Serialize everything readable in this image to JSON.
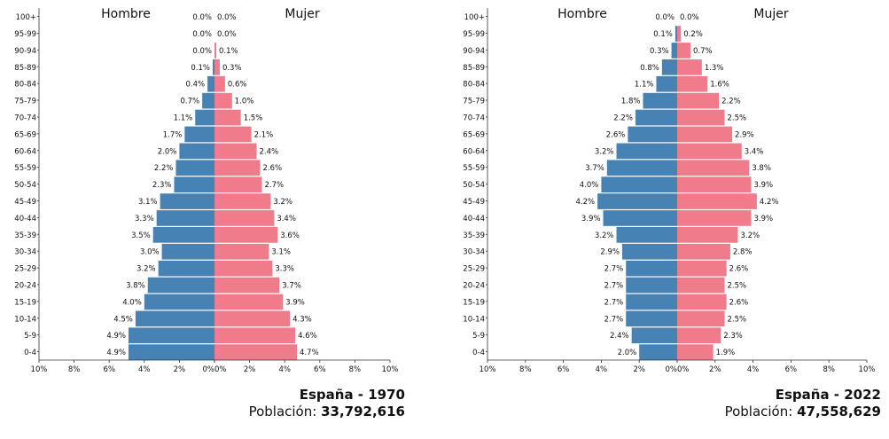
{
  "chart_data": [
    {
      "type": "bar",
      "orientation": "horizontal",
      "title": "España - 1970",
      "population_label": "Población:",
      "population": "33,792,616",
      "left_label": "Hombre",
      "right_label": "Mujer",
      "xlim": [
        -10,
        10
      ],
      "ticks": [
        "10%",
        "8%",
        "6%",
        "4%",
        "2%",
        "0%",
        "0%",
        "2%",
        "4%",
        "6%",
        "8%",
        "10%"
      ],
      "categories": [
        "0-4",
        "5-9",
        "10-14",
        "15-19",
        "20-24",
        "25-29",
        "30-34",
        "35-39",
        "40-44",
        "45-49",
        "50-54",
        "55-59",
        "60-64",
        "65-69",
        "70-74",
        "75-79",
        "80-84",
        "85-89",
        "90-94",
        "95-99",
        "100+"
      ],
      "series": [
        {
          "name": "Hombre",
          "values": [
            4.9,
            4.9,
            4.5,
            4.0,
            3.8,
            3.2,
            3.0,
            3.5,
            3.3,
            3.1,
            2.3,
            2.2,
            2.0,
            1.7,
            1.1,
            0.7,
            0.4,
            0.1,
            0.0,
            0.0,
            0.0
          ]
        },
        {
          "name": "Mujer",
          "values": [
            4.7,
            4.6,
            4.3,
            3.9,
            3.7,
            3.3,
            3.1,
            3.6,
            3.4,
            3.2,
            2.7,
            2.6,
            2.4,
            2.1,
            1.5,
            1.0,
            0.6,
            0.3,
            0.1,
            0.0,
            0.0
          ]
        }
      ]
    },
    {
      "type": "bar",
      "orientation": "horizontal",
      "title": "España - 2022",
      "population_label": "Población:",
      "population": "47,558,629",
      "left_label": "Hombre",
      "right_label": "Mujer",
      "xlim": [
        -10,
        10
      ],
      "ticks": [
        "10%",
        "8%",
        "6%",
        "4%",
        "2%",
        "0%",
        "0%",
        "2%",
        "4%",
        "6%",
        "8%",
        "10%"
      ],
      "categories": [
        "0-4",
        "5-9",
        "10-14",
        "15-19",
        "20-24",
        "25-29",
        "30-34",
        "35-39",
        "40-44",
        "45-49",
        "50-54",
        "55-59",
        "60-64",
        "65-69",
        "70-74",
        "75-79",
        "80-84",
        "85-89",
        "90-94",
        "95-99",
        "100+"
      ],
      "series": [
        {
          "name": "Hombre",
          "values": [
            2.0,
            2.4,
            2.7,
            2.7,
            2.7,
            2.7,
            2.9,
            3.2,
            3.9,
            4.2,
            4.0,
            3.7,
            3.2,
            2.6,
            2.2,
            1.8,
            1.1,
            0.8,
            0.3,
            0.1,
            0.0
          ]
        },
        {
          "name": "Mujer",
          "values": [
            1.9,
            2.3,
            2.5,
            2.6,
            2.5,
            2.6,
            2.8,
            3.2,
            3.9,
            4.2,
            3.9,
            3.8,
            3.4,
            2.9,
            2.5,
            2.2,
            1.6,
            1.3,
            0.7,
            0.2,
            0.0
          ]
        }
      ]
    }
  ],
  "colors": {
    "male": "#4682b4",
    "female": "#f07b8a",
    "axis": "#333333",
    "text": "#111111"
  }
}
